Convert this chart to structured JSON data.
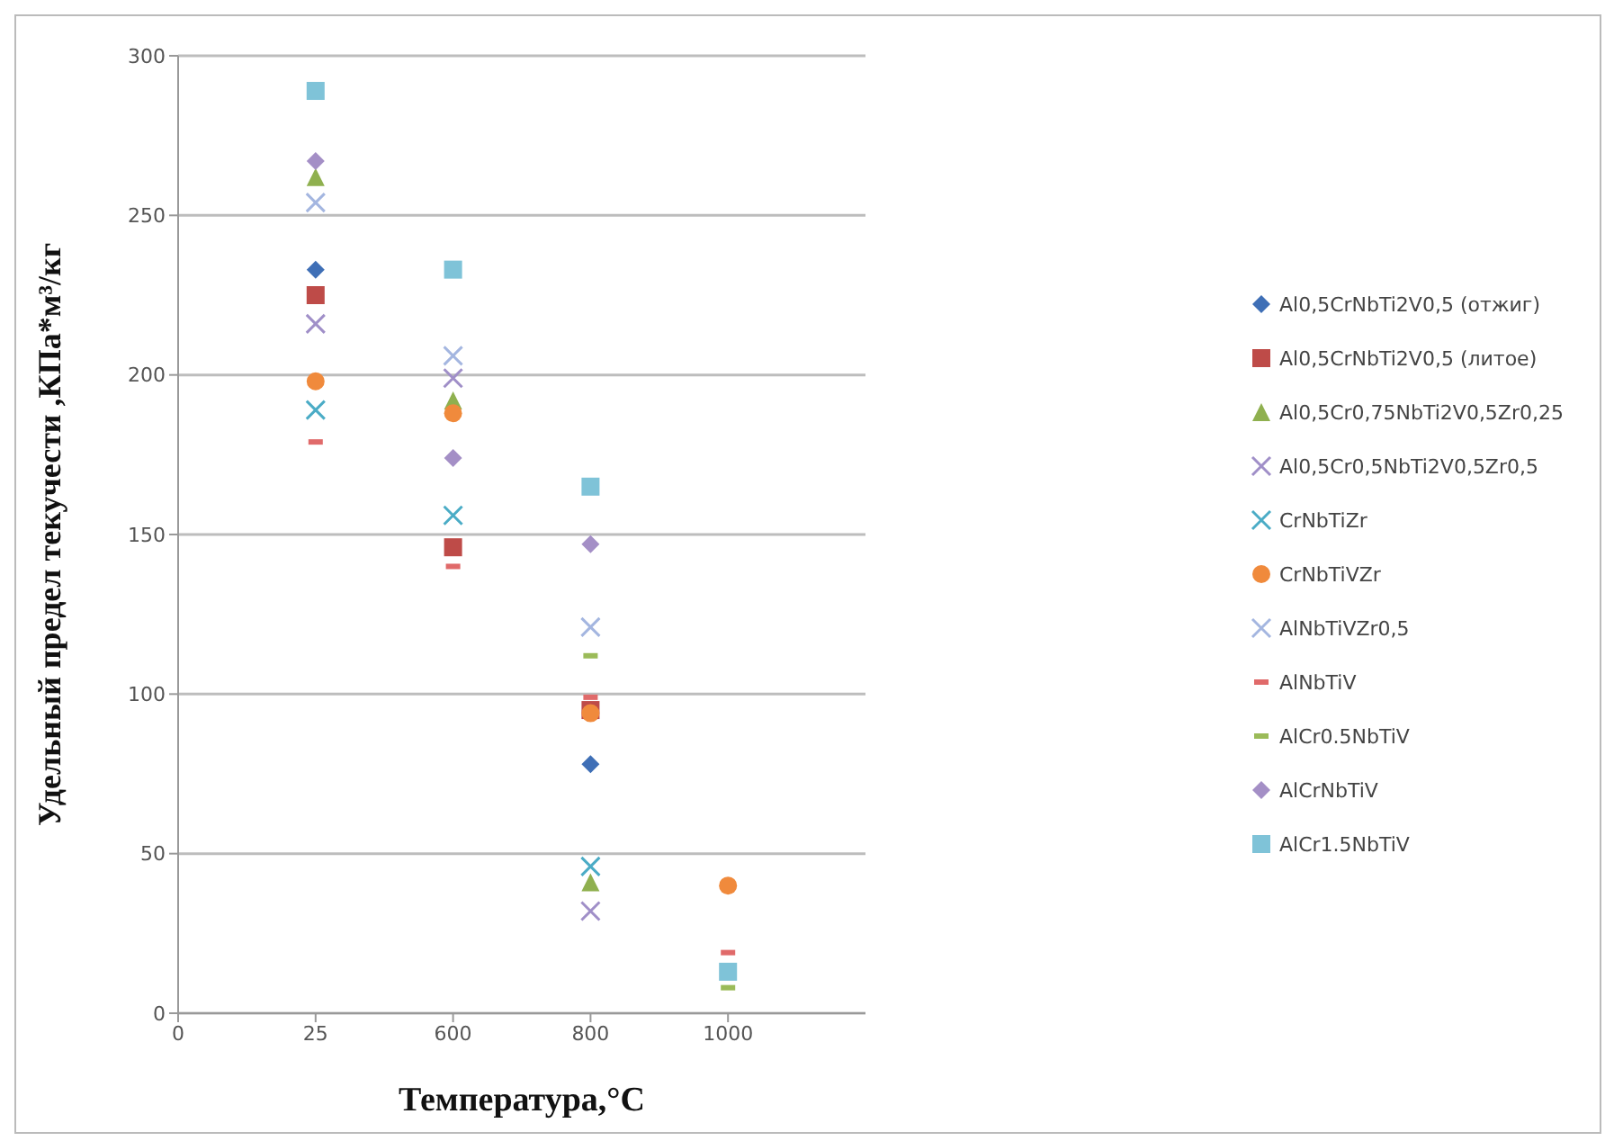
{
  "chart_data": {
    "type": "scatter",
    "xlabel": "Температура,°C",
    "ylabel": "Удельный предел текучести ,КПа*м³/кг",
    "categories": [
      "0",
      "25",
      "600",
      "800",
      "1000"
    ],
    "ylim": [
      0,
      300
    ],
    "yticks": [
      0,
      50,
      100,
      150,
      200,
      250,
      300
    ],
    "grid": "y",
    "legend": "right",
    "series": [
      {
        "name": "Al0,5CrNbTi2V0,5 (отжиг)",
        "color": "#3f6fb6",
        "marker": "diamond",
        "values": [
          null,
          233,
          null,
          78,
          null
        ]
      },
      {
        "name": "Al0,5CrNbTi2V0,5 (литое)",
        "color": "#be4b48",
        "marker": "square",
        "values": [
          null,
          225,
          146,
          95,
          null
        ]
      },
      {
        "name": "Al0,5Cr0,75NbTi2V0,5Zr0,25",
        "color": "#8fb04f",
        "marker": "triangle",
        "values": [
          null,
          262,
          192,
          41,
          null
        ]
      },
      {
        "name": "Al0,5Cr0,5NbTi2V0,5Zr0,5",
        "color": "#a08fc8",
        "marker": "cross",
        "values": [
          null,
          216,
          199,
          32,
          null
        ]
      },
      {
        "name": "CrNbTiZr",
        "color": "#4bacc6",
        "marker": "cross",
        "values": [
          null,
          189,
          156,
          46,
          null
        ]
      },
      {
        "name": "CrNbTiVZr",
        "color": "#f08a3c",
        "marker": "circle",
        "values": [
          null,
          198,
          188,
          94,
          40
        ]
      },
      {
        "name": "AlNbTiVZr0,5",
        "color": "#a4b6e0",
        "marker": "cross",
        "values": [
          null,
          254,
          206,
          121,
          null
        ]
      },
      {
        "name": "AlNbTiV",
        "color": "#e06a6a",
        "values": [
          null,
          179,
          140,
          99,
          19
        ]
      },
      {
        "name": "AlCr0.5NbTiV",
        "color": "#9bbb59",
        "values": [
          null,
          null,
          null,
          112,
          8
        ]
      },
      {
        "name": "AlCrNbTiV",
        "color": "#a48fc6",
        "marker": "diamond",
        "values": [
          null,
          267,
          174,
          147,
          null
        ]
      },
      {
        "name": "AlCr1.5NbTiV",
        "color": "#7fc3d8",
        "marker": "square",
        "values": [
          null,
          289,
          233,
          165,
          13
        ]
      }
    ]
  }
}
